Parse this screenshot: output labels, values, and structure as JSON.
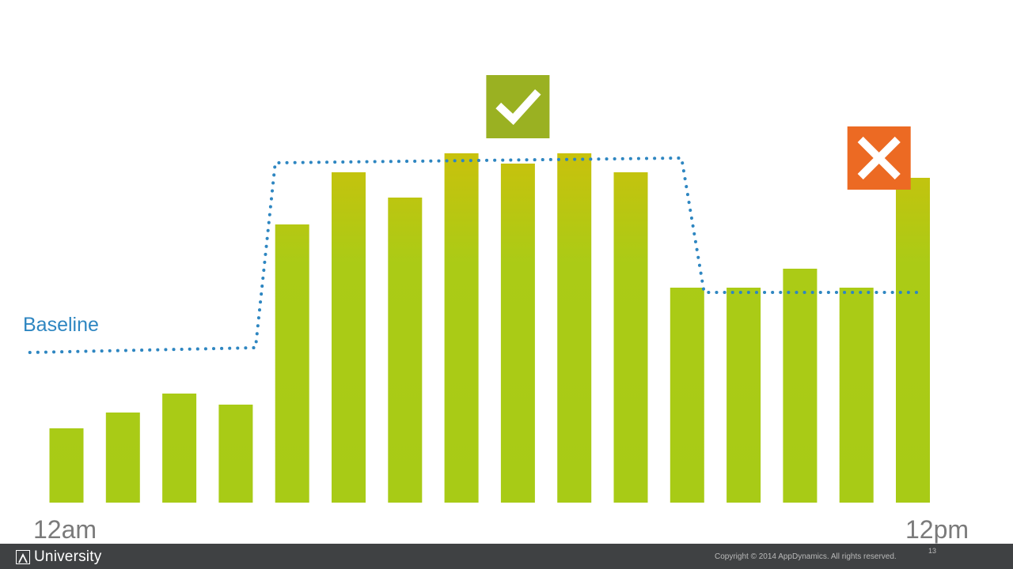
{
  "chart_data": {
    "type": "bar",
    "categories": [
      "",
      "",
      "",
      "",
      "",
      "",
      "",
      "",
      "",
      "",
      "",
      "",
      "",
      "",
      "",
      ""
    ],
    "values": [
      94,
      114,
      138,
      124,
      352,
      418,
      386,
      442,
      429,
      442,
      418,
      272,
      272,
      296,
      272,
      411
    ],
    "ylim": [
      0,
      460
    ],
    "grid": false,
    "x_start_label": "12am",
    "x_end_label": "12pm",
    "baseline": {
      "label": "Baseline",
      "points": [
        [
          -0.65,
          190
        ],
        [
          3.35,
          196
        ],
        [
          3.7,
          430
        ],
        [
          10.9,
          436
        ],
        [
          11.3,
          266
        ],
        [
          15.2,
          266
        ]
      ]
    },
    "markers": [
      {
        "type": "check",
        "at_bar": 8,
        "icon": "check-icon"
      },
      {
        "type": "cross",
        "at_bar": 14.4,
        "icon": "close-icon"
      }
    ],
    "colors": {
      "bar_bottom": "#a8cb16",
      "bar_top_tall": "#c9c10c",
      "baseline": "#2e86c1",
      "check_box": "#9ab122",
      "cross_box": "#ec6a23"
    }
  },
  "footer": {
    "brand": "University",
    "copyright": "Copyright © 2014 AppDynamics. All rights reserved.",
    "page_number": "13"
  }
}
